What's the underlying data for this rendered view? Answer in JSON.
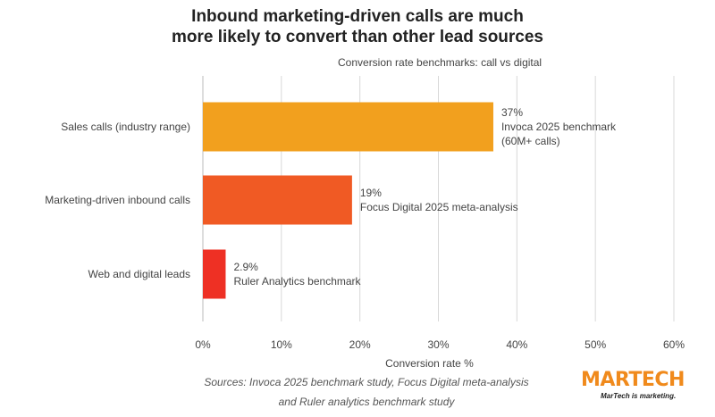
{
  "title_lines": [
    "Inbound marketing-driven calls are much",
    "more likely to convert than other lead sources"
  ],
  "sources_lines": [
    "Sources: Invoca 2025 benchmark study, Focus Digital meta-analysis",
    "and Ruler analytics benchmark study"
  ],
  "logo": {
    "brand": "MARTECH",
    "tagline": "MarTech is marketing."
  },
  "chart_data": {
    "type": "bar",
    "orientation": "horizontal",
    "subtitle": "Conversion rate benchmarks: call vs digital",
    "xlabel": "Conversion rate %",
    "xlim": [
      0,
      60
    ],
    "xticks": [
      "0%",
      "10%",
      "20%",
      "30%",
      "40%",
      "50%",
      "60%"
    ],
    "grid": true,
    "categories": [
      "Sales calls (industry range)",
      "Marketing-driven inbound calls",
      "Web and digital leads"
    ],
    "values": [
      37,
      19,
      2.9
    ],
    "data_labels": [
      "37%",
      "19%",
      "2.9%"
    ],
    "annotations": [
      [
        "Invoca 2025 benchmark",
        "(60M+ calls)"
      ],
      [
        "Focus Digital 2025 meta-analysis"
      ],
      [
        "Ruler Analytics benchmark"
      ]
    ],
    "colors": [
      "#F2A01E",
      "#F05A24",
      "#EE3024"
    ]
  }
}
